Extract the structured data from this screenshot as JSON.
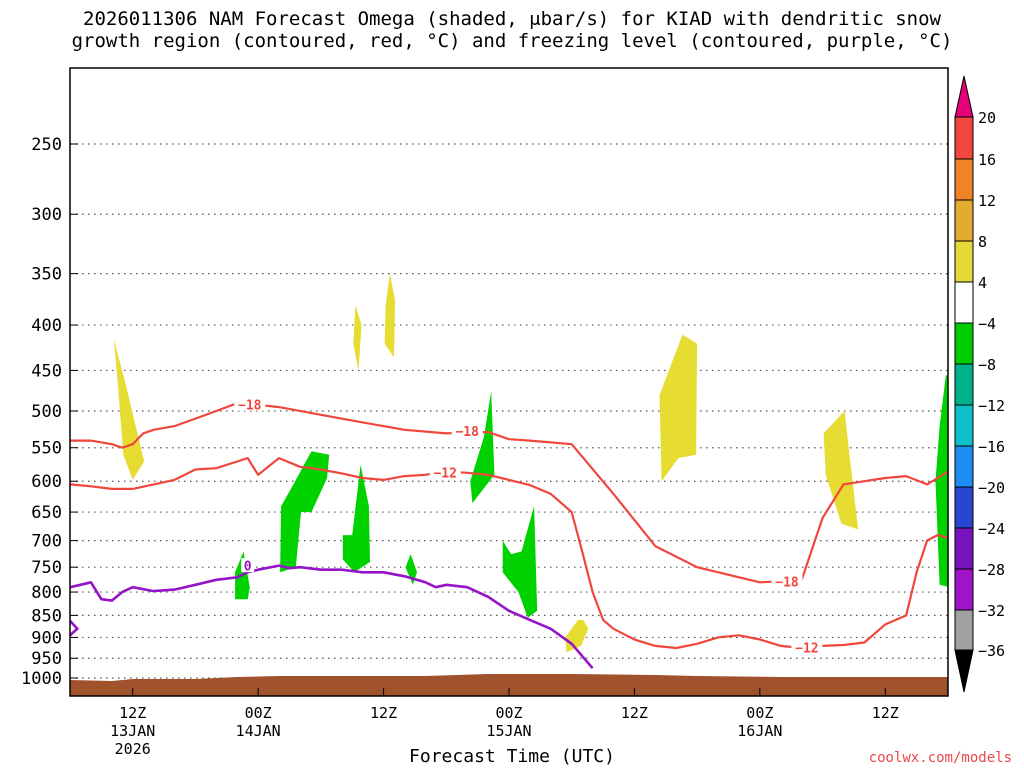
{
  "chart_data": {
    "type": "heatmap",
    "title_line1": "2026011306 NAM Forecast Omega (shaded, μbar/s) for KIAD with dendritic snow",
    "title_line2": "growth region (contoured, red, °C) and freezing level (contoured, purple, °C)",
    "xlabel": "Forecast Time (UTC)",
    "watermark": "coolwx.com/models",
    "y_ticks": [
      250,
      300,
      350,
      400,
      450,
      500,
      550,
      600,
      650,
      700,
      750,
      800,
      850,
      900,
      950,
      1000
    ],
    "x_ticks": [
      {
        "hour": 6,
        "l1": "12Z",
        "l2": "13JAN",
        "l3": "2026"
      },
      {
        "hour": 18,
        "l1": "00Z",
        "l2": "14JAN",
        "l3": ""
      },
      {
        "hour": 30,
        "l1": "12Z",
        "l2": "",
        "l3": ""
      },
      {
        "hour": 42,
        "l1": "00Z",
        "l2": "15JAN",
        "l3": ""
      },
      {
        "hour": 54,
        "l1": "12Z",
        "l2": "",
        "l3": ""
      },
      {
        "hour": 66,
        "l1": "00Z",
        "l2": "16JAN",
        "l3": ""
      },
      {
        "hour": 78,
        "l1": "12Z",
        "l2": "",
        "l3": ""
      }
    ],
    "colorbar": {
      "labels": [
        "20",
        "16",
        "12",
        "8",
        "4",
        "−4",
        "−8",
        "−12",
        "−16",
        "−20",
        "−24",
        "−28",
        "−32",
        "−36"
      ],
      "colors": [
        "#e3007a",
        "#f3463f",
        "#f08228",
        "#e5aa32",
        "#e5d93a",
        "#ffffff",
        "#00cc00",
        "#00b28c",
        "#10bec8",
        "#1e8cf0",
        "#2846d2",
        "#7814be",
        "#a014c8",
        "#a0a0a0",
        "#000000"
      ]
    },
    "contour_labels": {
      "m18": "−18",
      "m12": "−12",
      "zero": "0"
    },
    "colors": {
      "dgz": "#f0463c",
      "freezing": "#9614c8",
      "terrain": "#a0522d",
      "up_weak": "#00d200",
      "down_weak": "#e6dc32",
      "grid": "#555555"
    },
    "series": [
      {
        "name": "−18",
        "x": [
          0,
          2,
          4,
          5,
          6,
          7,
          8,
          10,
          12,
          14,
          16,
          17,
          18,
          20,
          24,
          28,
          32,
          36,
          40,
          42,
          44,
          48,
          52,
          56,
          60,
          64,
          66,
          68,
          70,
          72,
          74,
          76,
          78,
          80,
          82,
          84
        ],
        "y": [
          540,
          540,
          545,
          550,
          545,
          530,
          525,
          520,
          510,
          500,
          490,
          488,
          492,
          495,
          505,
          515,
          525,
          530,
          528,
          538,
          540,
          545,
          620,
          710,
          750,
          770,
          780,
          778,
          775,
          660,
          605,
          600,
          595,
          592,
          605,
          585
        ]
      },
      {
        "name": "−12",
        "x": [
          0,
          2,
          4,
          6,
          8,
          10,
          12,
          14,
          16,
          17,
          18,
          20,
          22,
          24,
          26,
          28,
          30,
          32,
          34,
          36,
          38,
          40,
          42,
          44,
          46,
          48,
          49,
          50,
          51,
          52,
          54,
          56,
          58,
          60,
          62,
          64,
          66,
          68,
          70,
          72,
          74,
          76,
          78,
          79,
          80,
          81,
          82,
          83,
          84
        ],
        "y": [
          605,
          608,
          612,
          612,
          605,
          598,
          582,
          580,
          570,
          565,
          590,
          565,
          578,
          582,
          588,
          595,
          598,
          592,
          590,
          585,
          587,
          590,
          598,
          606,
          620,
          650,
          720,
          800,
          860,
          880,
          905,
          920,
          925,
          915,
          900,
          895,
          905,
          920,
          925,
          920,
          918,
          912,
          870,
          860,
          850,
          760,
          700,
          690,
          695
        ]
      },
      {
        "name": "0",
        "x": [
          0,
          1,
          2,
          3,
          4,
          5,
          6,
          8,
          10,
          12,
          14,
          16,
          17,
          18,
          20,
          21,
          22,
          24,
          26,
          28,
          30,
          32,
          34,
          35,
          36,
          38,
          40,
          42,
          44,
          46,
          48,
          50
        ],
        "y": [
          790,
          785,
          780,
          815,
          818,
          800,
          790,
          798,
          795,
          785,
          775,
          770,
          760,
          755,
          747,
          752,
          750,
          755,
          755,
          760,
          760,
          768,
          780,
          790,
          785,
          790,
          810,
          840,
          860,
          880,
          915,
          975
        ]
      }
    ]
  }
}
